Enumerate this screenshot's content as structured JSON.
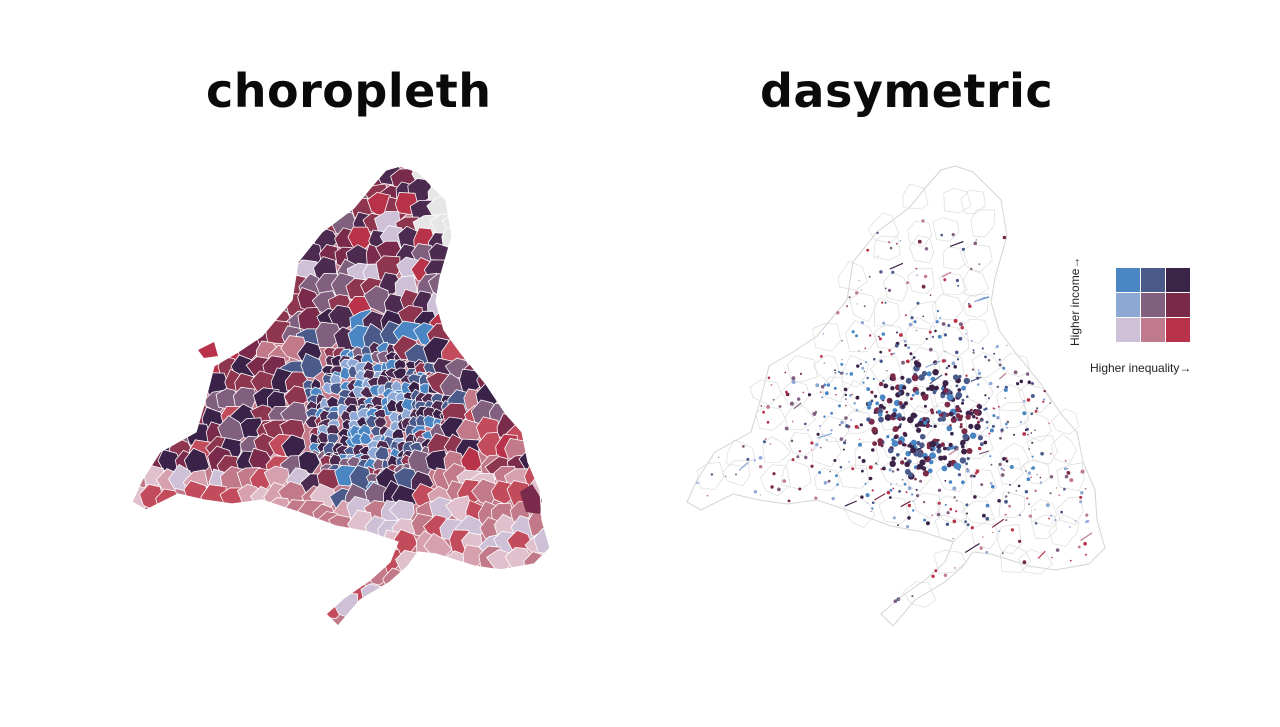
{
  "titles": {
    "left": "choropleth",
    "right": "dasymetric"
  },
  "legend": {
    "y_label": "Higher income→",
    "x_label": "Higher inequality→",
    "colors": [
      [
        "#4a86c4",
        "#4a5a8a",
        "#3a2448"
      ],
      [
        "#8ea8d6",
        "#80607e",
        "#7a2a48"
      ],
      [
        "#cec0d6",
        "#c07a8e",
        "#b8334a"
      ]
    ]
  },
  "palette": {
    "choropleth": [
      "#3b2249",
      "#4d2a4f",
      "#7a2a4a",
      "#8e3550",
      "#b8334a",
      "#c24b5c",
      "#c27a8a",
      "#d6a0ae",
      "#e0c0cc",
      "#cec0d6",
      "#8ea8d6",
      "#4a86c4",
      "#4a5a8a",
      "#80607e",
      "#e6e6e6"
    ],
    "dasymetric": [
      "#3b2249",
      "#4a5a8a",
      "#4a86c4",
      "#8ea8d6",
      "#7a2a48",
      "#b8334a",
      "#80607e",
      "#c07a8e"
    ],
    "boundary": "#ffffff",
    "outline": "#d4d4d4"
  }
}
